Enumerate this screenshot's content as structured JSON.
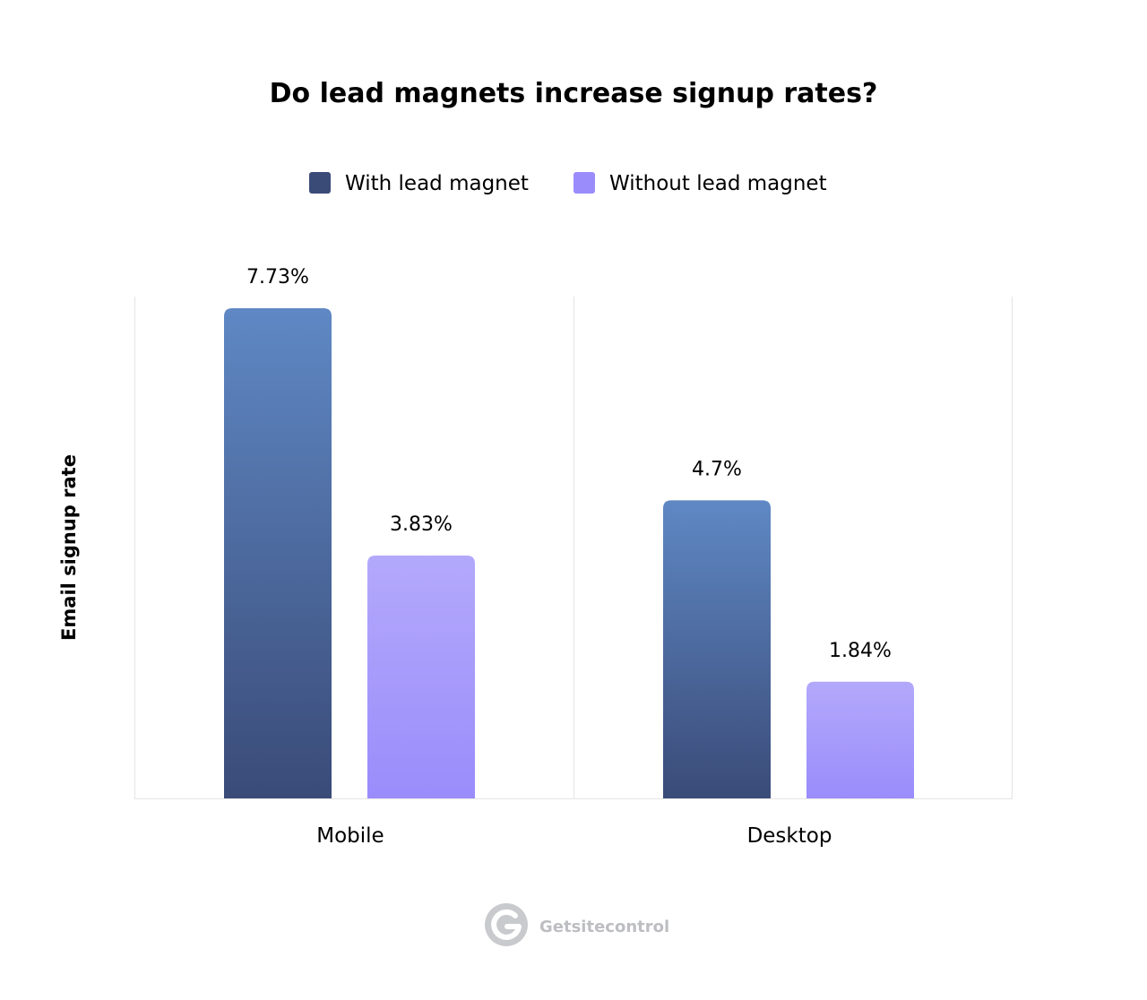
{
  "chart_data": {
    "type": "bar",
    "title": "Do lead magnets increase signup rates?",
    "xlabel": "",
    "ylabel": "Email signup rate",
    "ylim": [
      0,
      8.5
    ],
    "grid": false,
    "legend_position": "top-center",
    "categories": [
      "Mobile",
      "Desktop"
    ],
    "series": [
      {
        "name": "With lead magnet",
        "values": [
          7.73,
          4.7
        ],
        "labels": [
          "7.73%",
          "4.7%"
        ],
        "color": "#3a4b78",
        "color_top": "#5f88c4"
      },
      {
        "name": "Without lead magnet",
        "values": [
          3.83,
          1.84
        ],
        "labels": [
          "3.83%",
          "1.84%"
        ],
        "color": "#9a8cfb",
        "color_top": "#b3a9fb"
      }
    ]
  },
  "brand": {
    "name": "Getsitecontrol",
    "logo_icon": "getsitecontrol-logo-icon"
  }
}
